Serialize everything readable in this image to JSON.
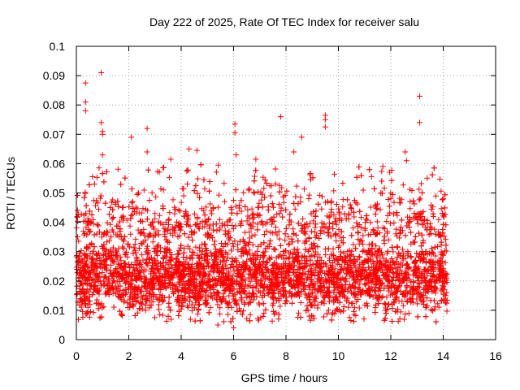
{
  "chart_data": {
    "type": "scatter",
    "title": "Day 222 of 2025, Rate Of TEC Index for receiver salu",
    "xlabel": "GPS time / hours",
    "ylabel": "ROTI / TECUs",
    "xlim": [
      0,
      16
    ],
    "ylim": [
      0,
      0.1
    ],
    "xticks": [
      "0",
      "2",
      "4",
      "6",
      "8",
      "10",
      "12",
      "14",
      "16"
    ],
    "yticks": [
      "0",
      "0.01",
      "0.02",
      "0.03",
      "0.04",
      "0.05",
      "0.06",
      "0.07",
      "0.08",
      "0.09",
      "0.1"
    ],
    "grid": true,
    "marker": "+",
    "series": [
      {
        "name": "ROTI",
        "color": "#ff0000",
        "x_range": [
          0,
          14.15
        ],
        "bulk_range": [
          0.008,
          0.035
        ],
        "notable_points": [
          {
            "x": 0.35,
            "y": 0.0875
          },
          {
            "x": 0.35,
            "y": 0.081
          },
          {
            "x": 0.35,
            "y": 0.078
          },
          {
            "x": 0.95,
            "y": 0.091
          },
          {
            "x": 0.95,
            "y": 0.074
          },
          {
            "x": 1.0,
            "y": 0.071
          },
          {
            "x": 1.0,
            "y": 0.07
          },
          {
            "x": 1.0,
            "y": 0.063
          },
          {
            "x": 2.1,
            "y": 0.069
          },
          {
            "x": 2.7,
            "y": 0.072
          },
          {
            "x": 2.7,
            "y": 0.064
          },
          {
            "x": 3.6,
            "y": 0.0615
          },
          {
            "x": 4.3,
            "y": 0.065
          },
          {
            "x": 4.6,
            "y": 0.0645
          },
          {
            "x": 6.05,
            "y": 0.0735
          },
          {
            "x": 6.05,
            "y": 0.0705
          },
          {
            "x": 6.1,
            "y": 0.063
          },
          {
            "x": 6.85,
            "y": 0.0615
          },
          {
            "x": 7.8,
            "y": 0.076
          },
          {
            "x": 8.3,
            "y": 0.064
          },
          {
            "x": 8.6,
            "y": 0.069
          },
          {
            "x": 9.5,
            "y": 0.0765
          },
          {
            "x": 9.5,
            "y": 0.075
          },
          {
            "x": 9.5,
            "y": 0.0725
          },
          {
            "x": 12.55,
            "y": 0.064
          },
          {
            "x": 12.6,
            "y": 0.061
          },
          {
            "x": 13.1,
            "y": 0.083
          },
          {
            "x": 13.1,
            "y": 0.074
          },
          {
            "x": 6.0,
            "y": 0.004
          },
          {
            "x": 5.4,
            "y": 0.005
          }
        ]
      }
    ]
  }
}
